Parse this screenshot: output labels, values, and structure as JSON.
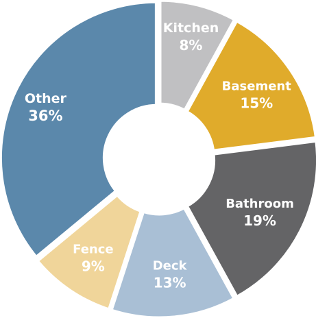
{
  "chart_data": {
    "type": "pie",
    "title": "",
    "categories": [
      "Kitchen",
      "Basement",
      "Bathroom",
      "Deck",
      "Fence",
      "Other"
    ],
    "values": [
      8,
      15,
      19,
      13,
      9,
      36
    ],
    "value_labels": [
      "8%",
      "15%",
      "19%",
      "13%",
      "9%",
      "36%"
    ],
    "colors": [
      "#c0c0c2",
      "#e0ab2b",
      "#646466",
      "#a9bfd5",
      "#f0d59a",
      "#5b88ab"
    ],
    "donut": true,
    "legend": "none"
  }
}
